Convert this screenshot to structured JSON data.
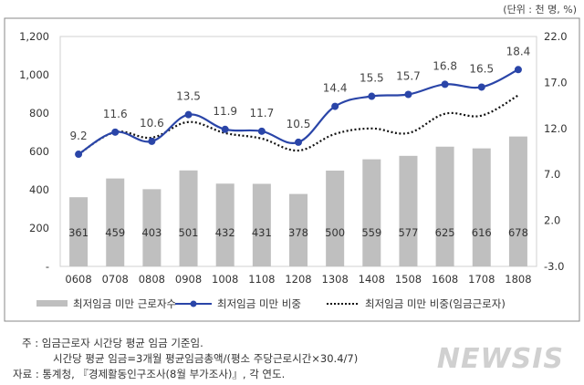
{
  "unit_label": "(단위 : 천 명, %)",
  "chart_data": {
    "type": "bar+line",
    "categories": [
      "0608",
      "0708",
      "0808",
      "0908",
      "1008",
      "1108",
      "1208",
      "1308",
      "1408",
      "1508",
      "1608",
      "1708",
      "1808"
    ],
    "series": [
      {
        "name": "최저임금 미만 근로자수",
        "type": "bar",
        "axis": "left",
        "color": "#bfbfbf",
        "values": [
          361,
          459,
          403,
          501,
          432,
          431,
          378,
          500,
          559,
          577,
          625,
          616,
          678
        ]
      },
      {
        "name": "최저임금 미만 비중",
        "type": "line",
        "axis": "right",
        "color": "#2a45a8",
        "marker": "circle",
        "values": [
          9.2,
          11.6,
          10.6,
          13.5,
          11.9,
          11.7,
          10.5,
          14.4,
          15.5,
          15.7,
          16.8,
          16.5,
          18.4
        ]
      },
      {
        "name": "최저임금 미만 비중(임금근로자)",
        "type": "line",
        "axis": "right",
        "color": "#111111",
        "style": "dotted",
        "values": [
          9.2,
          11.6,
          11.0,
          12.7,
          11.5,
          10.9,
          9.6,
          11.4,
          12.0,
          11.5,
          13.6,
          13.4,
          15.6
        ]
      }
    ],
    "y_left": {
      "range": [
        0,
        1200
      ],
      "ticks": [
        "-",
        "200",
        "400",
        "600",
        "800",
        "1,000",
        "1,200"
      ]
    },
    "y_right": {
      "range": [
        -3,
        22
      ],
      "ticks": [
        "-3.0",
        "2.0",
        "7.0",
        "12.0",
        "17.0",
        "22.0"
      ]
    },
    "grid": false,
    "legend": "bottom"
  },
  "notes": [
    "주 : 임금근로자 시간당 평균 임금 기준임.",
    "시간당 평균 임금=3개월 평균임금총액/(평소 주당근로시간×30.4/7)",
    "자료 : 통계청, 『경제활동인구조사(8월 부가조사)』, 각 연도."
  ],
  "watermark": "NEWSIS"
}
